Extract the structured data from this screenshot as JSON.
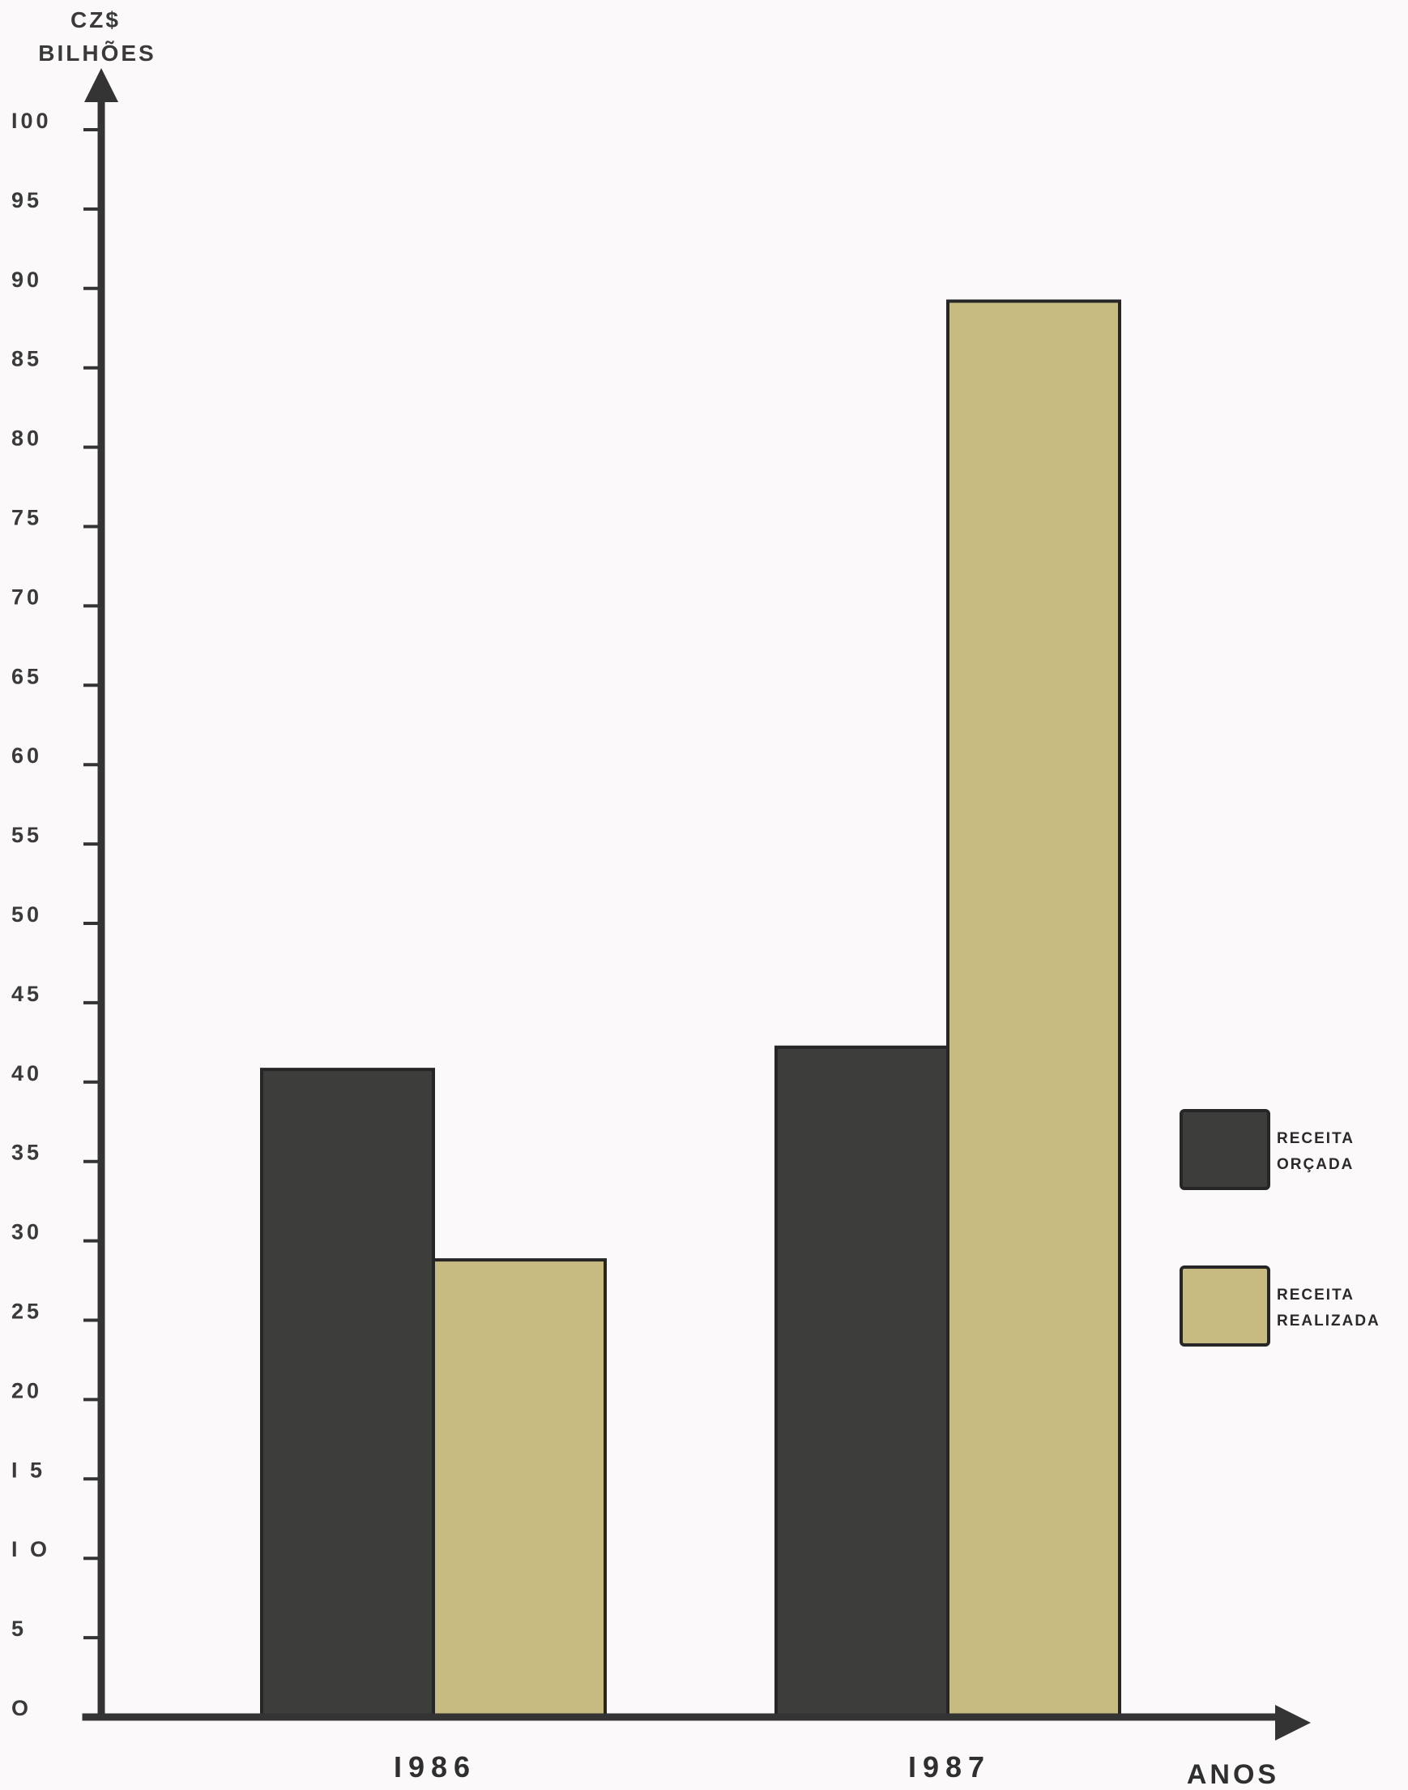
{
  "chart_data": {
    "type": "bar",
    "ylabel_lines": [
      "CZ$",
      "BILHÕES"
    ],
    "xlabel": "ANOS",
    "ylim": [
      0,
      100
    ],
    "yticks": [
      {
        "value": 0,
        "label": "O"
      },
      {
        "value": 5,
        "label": "5"
      },
      {
        "value": 10,
        "label": "I O"
      },
      {
        "value": 15,
        "label": "I 5"
      },
      {
        "value": 20,
        "label": "20"
      },
      {
        "value": 25,
        "label": "25"
      },
      {
        "value": 30,
        "label": "30"
      },
      {
        "value": 35,
        "label": "35"
      },
      {
        "value": 40,
        "label": "40"
      },
      {
        "value": 45,
        "label": "45"
      },
      {
        "value": 50,
        "label": "50"
      },
      {
        "value": 55,
        "label": "55"
      },
      {
        "value": 60,
        "label": "60"
      },
      {
        "value": 65,
        "label": "65"
      },
      {
        "value": 70,
        "label": "70"
      },
      {
        "value": 75,
        "label": "75"
      },
      {
        "value": 80,
        "label": "80"
      },
      {
        "value": 85,
        "label": "85"
      },
      {
        "value": 90,
        "label": "90"
      },
      {
        "value": 95,
        "label": "95"
      },
      {
        "value": 100,
        "label": "I00"
      }
    ],
    "categories": [
      "I986",
      "I987"
    ],
    "series": [
      {
        "name": "RECEITA ORÇADA",
        "legend_lines": [
          "RECEITA",
          "ORÇADA"
        ],
        "color": "#3d3d3b",
        "values": [
          40.8,
          42.2
        ]
      },
      {
        "name": "RECEITA REALIZADA",
        "legend_lines": [
          "RECEITA",
          "REALIZADA"
        ],
        "color": "#c8bb81",
        "values": [
          28.8,
          89.2
        ]
      }
    ],
    "grid": false,
    "legend_position": "right"
  }
}
